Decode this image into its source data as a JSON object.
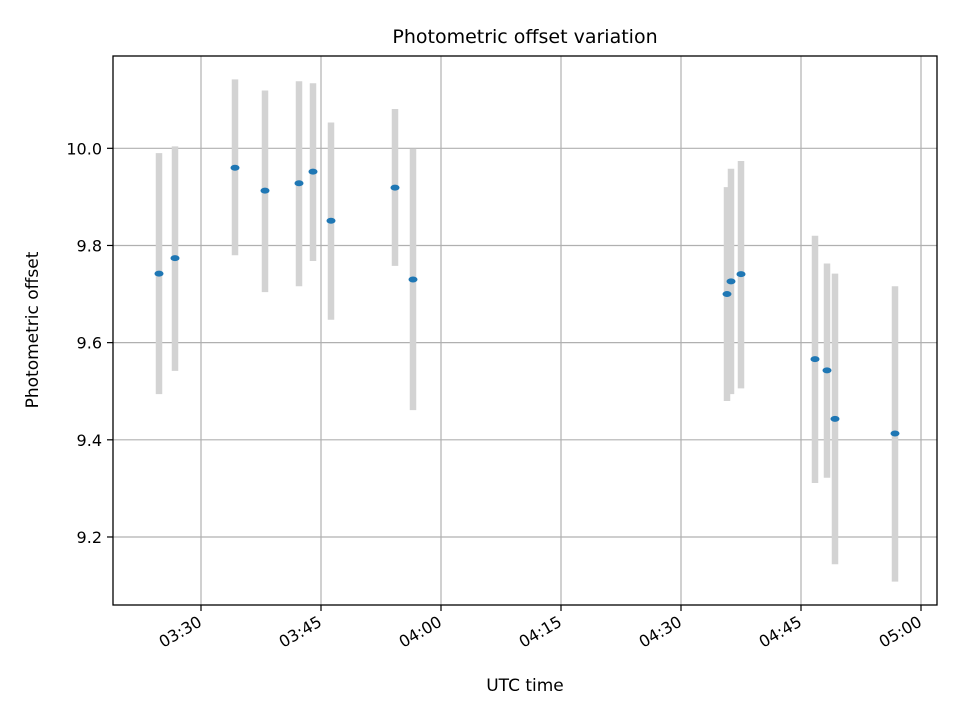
{
  "chart_data": {
    "type": "scatter",
    "title": "Photometric offset variation",
    "xlabel": "UTC time",
    "ylabel": "Photometric offset",
    "x_tick_labels": [
      "03:30",
      "03:45",
      "04:00",
      "04:15",
      "04:30",
      "04:45",
      "05:00"
    ],
    "y_tick_labels": [
      "9.2",
      "9.4",
      "9.6",
      "9.8",
      "10.0"
    ],
    "y_ticks": [
      9.2,
      9.4,
      9.6,
      9.8,
      10.0
    ],
    "xlim": [
      "03:19",
      "05:02"
    ],
    "ylim": [
      9.06,
      10.19
    ],
    "grid": true,
    "colors": {
      "point": "#1f77b4",
      "error_bar": "#d3d3d3",
      "grid": "#b0b0b0"
    },
    "points": [
      {
        "time": "03:24:45",
        "y": 9.742,
        "ylow": 9.494,
        "yhigh": 9.99
      },
      {
        "time": "03:26:45",
        "y": 9.774,
        "ylow": 9.542,
        "yhigh": 10.004
      },
      {
        "time": "03:34:15",
        "y": 9.96,
        "ylow": 9.78,
        "yhigh": 10.142
      },
      {
        "time": "03:38:00",
        "y": 9.913,
        "ylow": 9.704,
        "yhigh": 10.119
      },
      {
        "time": "03:42:15",
        "y": 9.928,
        "ylow": 9.716,
        "yhigh": 10.138
      },
      {
        "time": "03:44:00",
        "y": 9.952,
        "ylow": 9.768,
        "yhigh": 10.134
      },
      {
        "time": "03:46:15",
        "y": 9.851,
        "ylow": 9.647,
        "yhigh": 10.053
      },
      {
        "time": "03:54:15",
        "y": 9.919,
        "ylow": 9.758,
        "yhigh": 10.081
      },
      {
        "time": "03:56:30",
        "y": 9.73,
        "ylow": 9.461,
        "yhigh": 9.999
      },
      {
        "time": "04:35:45",
        "y": 9.7,
        "ylow": 9.48,
        "yhigh": 9.92
      },
      {
        "time": "04:36:15",
        "y": 9.726,
        "ylow": 9.494,
        "yhigh": 9.958
      },
      {
        "time": "04:37:30",
        "y": 9.741,
        "ylow": 9.506,
        "yhigh": 9.974
      },
      {
        "time": "04:46:45",
        "y": 9.566,
        "ylow": 9.311,
        "yhigh": 9.82
      },
      {
        "time": "04:48:15",
        "y": 9.543,
        "ylow": 9.322,
        "yhigh": 9.763
      },
      {
        "time": "04:49:15",
        "y": 9.443,
        "ylow": 9.144,
        "yhigh": 9.742
      },
      {
        "time": "04:56:45",
        "y": 9.413,
        "ylow": 9.108,
        "yhigh": 9.716
      }
    ]
  }
}
